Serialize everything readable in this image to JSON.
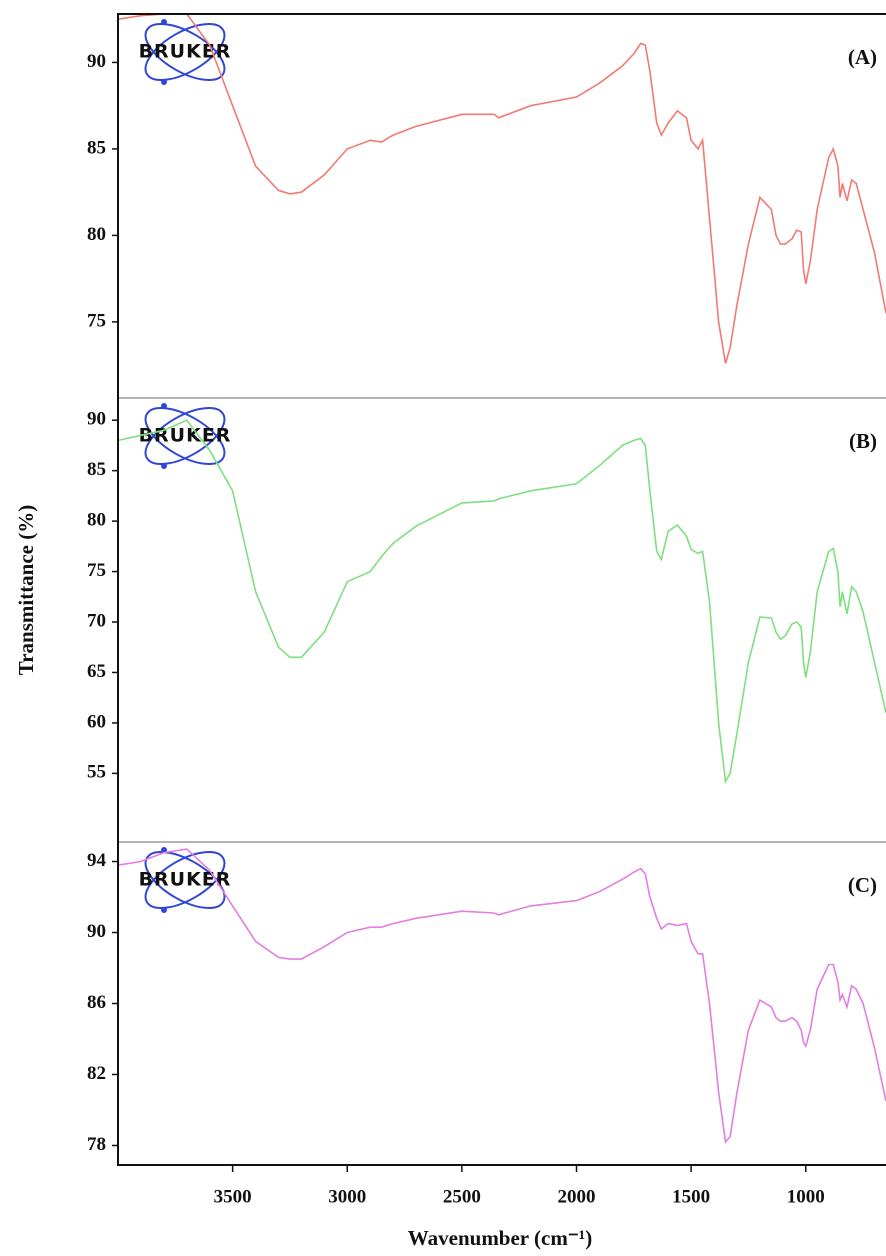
{
  "chart_data": [
    {
      "type": "line",
      "label": "(A)",
      "logo": "BRUKER",
      "x": [
        4000,
        3900,
        3800,
        3700,
        3600,
        3500,
        3400,
        3300,
        3250,
        3200,
        3100,
        3000,
        2900,
        2850,
        2800,
        2700,
        2500,
        2360,
        2340,
        2200,
        2000,
        1900,
        1800,
        1750,
        1720,
        1700,
        1680,
        1650,
        1630,
        1600,
        1560,
        1520,
        1500,
        1470,
        1450,
        1420,
        1400,
        1380,
        1350,
        1330,
        1300,
        1250,
        1200,
        1150,
        1130,
        1110,
        1090,
        1060,
        1040,
        1020,
        1010,
        1000,
        980,
        950,
        900,
        880,
        860,
        850,
        840,
        820,
        800,
        780,
        750,
        700,
        650
      ],
      "series": [
        {
          "color": "#f27a72",
          "values": [
            92.5,
            92.7,
            92.8,
            92.8,
            91,
            87.5,
            84,
            82.6,
            82.4,
            82.5,
            83.5,
            85,
            85.5,
            85.4,
            85.8,
            86.3,
            87,
            87,
            86.8,
            87.5,
            88,
            88.8,
            89.8,
            90.5,
            91.1,
            91,
            89.5,
            86.5,
            85.8,
            86.5,
            87.2,
            86.8,
            85.5,
            85,
            85.5,
            81,
            78,
            75,
            72.6,
            73.5,
            76,
            79.5,
            82.2,
            81.5,
            80,
            79.5,
            79.5,
            79.8,
            80.3,
            80.2,
            78,
            77.2,
            78.5,
            81.5,
            84.5,
            85,
            84,
            82.2,
            83,
            82,
            83.2,
            83,
            81.5,
            79,
            75.5
          ]
        }
      ],
      "xlim": [
        4000,
        650
      ],
      "ylim": [
        70.6,
        92.8
      ],
      "yticks": [
        75,
        80,
        85,
        90
      ]
    },
    {
      "type": "line",
      "label": "(B)",
      "logo": "BRUKER",
      "ylabel": "Transmittance (%)",
      "x": [
        4000,
        3900,
        3800,
        3700,
        3600,
        3500,
        3400,
        3300,
        3250,
        3200,
        3100,
        3000,
        2900,
        2850,
        2800,
        2700,
        2500,
        2360,
        2340,
        2200,
        2000,
        1900,
        1800,
        1750,
        1720,
        1700,
        1680,
        1650,
        1630,
        1600,
        1560,
        1520,
        1500,
        1470,
        1450,
        1420,
        1400,
        1380,
        1350,
        1330,
        1300,
        1250,
        1200,
        1150,
        1130,
        1110,
        1090,
        1060,
        1040,
        1020,
        1010,
        1000,
        980,
        950,
        900,
        880,
        860,
        850,
        840,
        820,
        800,
        780,
        750,
        700,
        650
      ],
      "series": [
        {
          "color": "#7fdf7f",
          "values": [
            88,
            88.5,
            89,
            90,
            87,
            83,
            73,
            67.5,
            66.5,
            66.5,
            69,
            74,
            75,
            76.5,
            77.8,
            79.5,
            81.8,
            82,
            82.2,
            83,
            83.7,
            85.5,
            87.5,
            88,
            88.2,
            87.5,
            83,
            77,
            76.2,
            79,
            79.6,
            78.5,
            77.2,
            76.8,
            77,
            72,
            66,
            60,
            54.2,
            55,
            59,
            66,
            70.5,
            70.4,
            69,
            68.3,
            68.6,
            69.8,
            70,
            69.5,
            66,
            64.5,
            67,
            73,
            77,
            77.3,
            75,
            71.5,
            73,
            70.8,
            73.5,
            73,
            71,
            66,
            61
          ]
        }
      ],
      "xlim": [
        4000,
        650
      ],
      "ylim": [
        48.2,
        92.2
      ],
      "yticks": [
        55,
        60,
        65,
        70,
        75,
        80,
        85,
        90
      ]
    },
    {
      "type": "line",
      "label": "(C)",
      "logo": "BRUKER",
      "xlabel": "Wavenumber (cm⁻¹)",
      "x": [
        4000,
        3900,
        3800,
        3700,
        3600,
        3500,
        3400,
        3300,
        3250,
        3200,
        3100,
        3000,
        2900,
        2850,
        2800,
        2700,
        2500,
        2360,
        2340,
        2200,
        2000,
        1900,
        1800,
        1750,
        1720,
        1700,
        1680,
        1650,
        1630,
        1600,
        1560,
        1520,
        1500,
        1470,
        1450,
        1420,
        1400,
        1380,
        1350,
        1330,
        1300,
        1250,
        1200,
        1150,
        1130,
        1110,
        1090,
        1060,
        1040,
        1020,
        1010,
        1000,
        980,
        950,
        900,
        880,
        860,
        850,
        840,
        820,
        800,
        780,
        750,
        700,
        650
      ],
      "series": [
        {
          "color": "#e27ee2",
          "values": [
            93.8,
            94,
            94.5,
            94.7,
            93.5,
            91.5,
            89.5,
            88.6,
            88.5,
            88.5,
            89.2,
            90,
            90.3,
            90.3,
            90.5,
            90.8,
            91.2,
            91.1,
            91,
            91.5,
            91.8,
            92.3,
            93,
            93.4,
            93.6,
            93.3,
            92,
            90.8,
            90.2,
            90.5,
            90.4,
            90.5,
            89.5,
            88.8,
            88.8,
            86,
            83.5,
            81,
            78.2,
            78.5,
            81,
            84.5,
            86.2,
            85.8,
            85.2,
            85,
            85,
            85.2,
            85,
            84.5,
            83.8,
            83.6,
            84.5,
            86.8,
            88.2,
            88.2,
            87.2,
            86.2,
            86.5,
            85.8,
            87,
            86.8,
            86,
            83.5,
            80.5
          ]
        }
      ],
      "xlim": [
        4000,
        650
      ],
      "ylim": [
        76.9,
        95.1
      ],
      "yticks": [
        78,
        82,
        86,
        90,
        94
      ],
      "xticks": [
        3500,
        3000,
        2500,
        2000,
        1500,
        1000
      ]
    }
  ]
}
